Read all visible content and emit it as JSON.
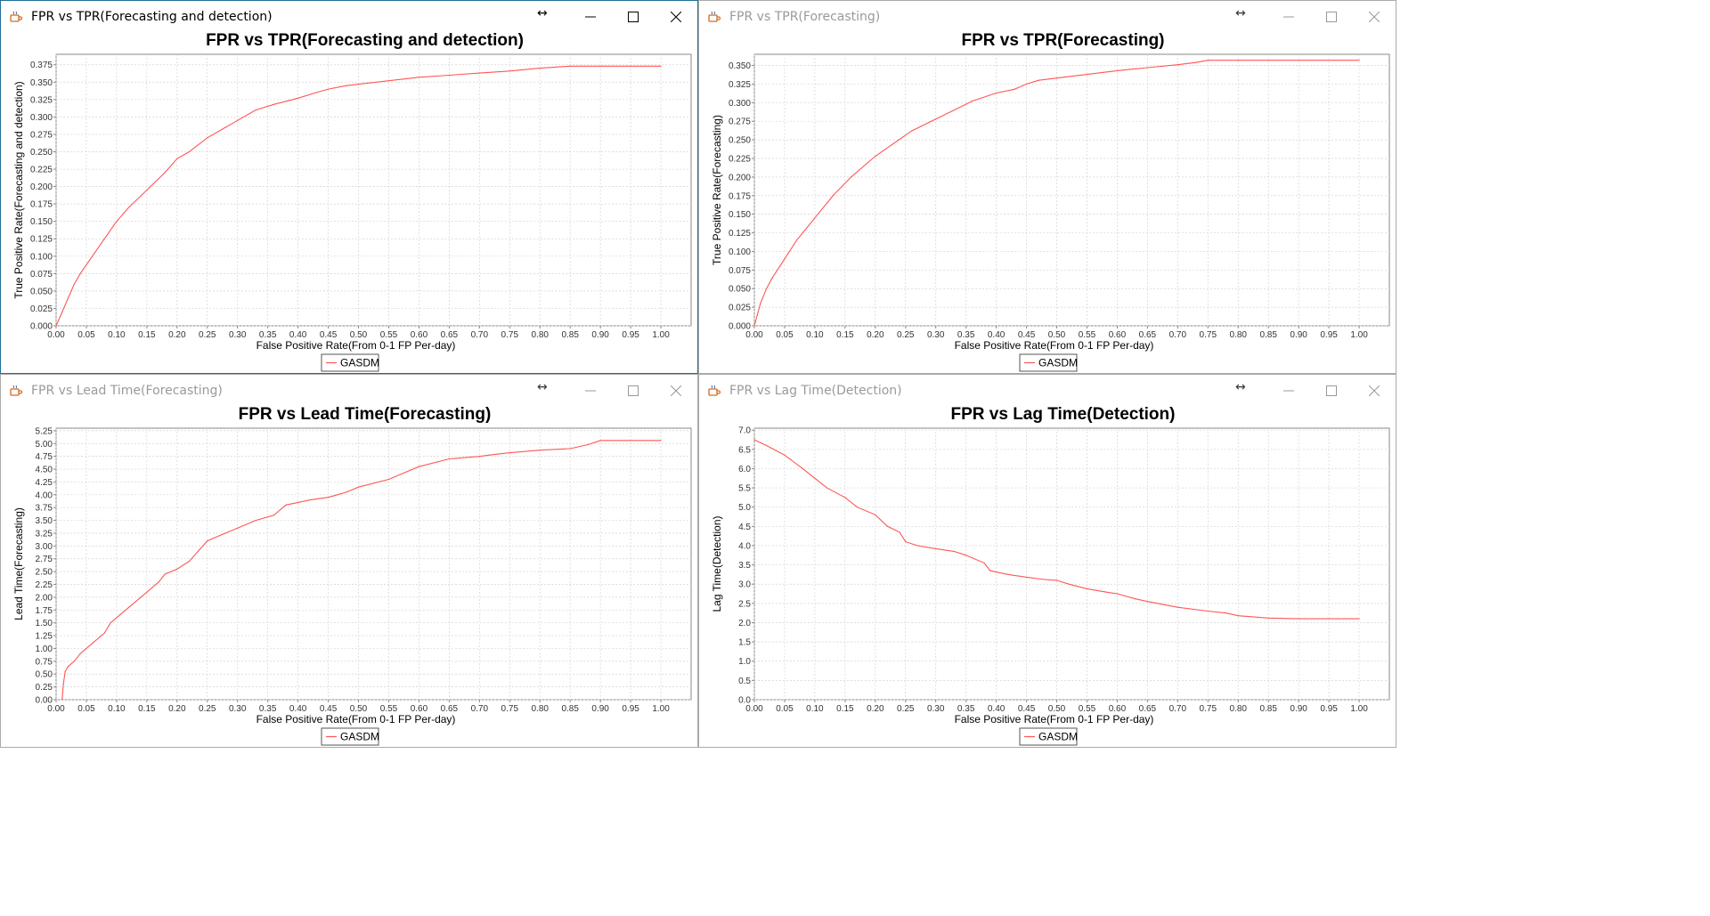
{
  "colors": {
    "series": "#ff5555",
    "grid": "#d4d4d4",
    "axis": "#888888",
    "active_border": "#1f6e97"
  },
  "icons": {
    "app": "java-cup-icon",
    "resize": "horizontal-resize-icon",
    "minimize": "minimize-icon",
    "maximize": "maximize-icon",
    "close": "close-icon"
  },
  "windows": [
    {
      "title": "FPR vs TPR(Forecasting and detection)",
      "active": true
    },
    {
      "title": "FPR vs TPR(Forecasting)",
      "active": false
    },
    {
      "title": "FPR vs Lead Time(Forecasting)",
      "active": false
    },
    {
      "title": "FPR vs Lag Time(Detection)",
      "active": false
    }
  ],
  "chart_data": [
    {
      "type": "line",
      "title": "FPR vs TPR(Forecasting and detection)",
      "xlabel": "False Positive Rate(From 0-1 FP Per-day)",
      "ylabel": "True Positive Rate(Forecasting and detection)",
      "xlim": [
        0,
        1.05
      ],
      "ylim": [
        0,
        0.39
      ],
      "xticks": [
        "0.00",
        "0.05",
        "0.10",
        "0.15",
        "0.20",
        "0.25",
        "0.30",
        "0.35",
        "0.40",
        "0.45",
        "0.50",
        "0.55",
        "0.60",
        "0.65",
        "0.70",
        "0.75",
        "0.80",
        "0.85",
        "0.90",
        "0.95",
        "1.00"
      ],
      "yticks": [
        "0.000",
        "0.025",
        "0.050",
        "0.075",
        "0.100",
        "0.125",
        "0.150",
        "0.175",
        "0.200",
        "0.225",
        "0.250",
        "0.275",
        "0.300",
        "0.325",
        "0.350",
        "0.375"
      ],
      "grid": true,
      "legend_position": "bottom-center",
      "series": [
        {
          "name": "GASDM",
          "x": [
            0,
            0.01,
            0.02,
            0.03,
            0.04,
            0.06,
            0.08,
            0.1,
            0.12,
            0.15,
            0.18,
            0.2,
            0.22,
            0.25,
            0.28,
            0.3,
            0.33,
            0.36,
            0.4,
            0.43,
            0.45,
            0.48,
            0.5,
            0.55,
            0.6,
            0.65,
            0.7,
            0.75,
            0.8,
            0.85,
            0.9,
            0.95,
            1.0
          ],
          "y": [
            0,
            0.02,
            0.04,
            0.06,
            0.075,
            0.1,
            0.125,
            0.15,
            0.17,
            0.195,
            0.22,
            0.24,
            0.25,
            0.27,
            0.285,
            0.295,
            0.31,
            0.318,
            0.327,
            0.335,
            0.34,
            0.345,
            0.347,
            0.352,
            0.357,
            0.36,
            0.363,
            0.366,
            0.37,
            0.373,
            0.373,
            0.373,
            0.373
          ]
        }
      ]
    },
    {
      "type": "line",
      "title": "FPR vs TPR(Forecasting)",
      "xlabel": "False Positive Rate(From 0-1 FP Per-day)",
      "ylabel": "True Positive Rate(Forecasting)",
      "xlim": [
        0,
        1.05
      ],
      "ylim": [
        0,
        0.365
      ],
      "xticks": [
        "0.00",
        "0.05",
        "0.10",
        "0.15",
        "0.20",
        "0.25",
        "0.30",
        "0.35",
        "0.40",
        "0.45",
        "0.50",
        "0.55",
        "0.60",
        "0.65",
        "0.70",
        "0.75",
        "0.80",
        "0.85",
        "0.90",
        "0.95",
        "1.00"
      ],
      "yticks": [
        "0.000",
        "0.025",
        "0.050",
        "0.075",
        "0.100",
        "0.125",
        "0.150",
        "0.175",
        "0.200",
        "0.225",
        "0.250",
        "0.275",
        "0.300",
        "0.325",
        "0.350"
      ],
      "grid": true,
      "legend_position": "bottom-center",
      "series": [
        {
          "name": "GASDM",
          "x": [
            0,
            0.01,
            0.02,
            0.03,
            0.05,
            0.07,
            0.1,
            0.13,
            0.16,
            0.2,
            0.23,
            0.26,
            0.3,
            0.33,
            0.36,
            0.4,
            0.43,
            0.45,
            0.47,
            0.5,
            0.55,
            0.6,
            0.65,
            0.7,
            0.73,
            0.75,
            0.8,
            0.9,
            1.0
          ],
          "y": [
            0,
            0.03,
            0.05,
            0.065,
            0.09,
            0.115,
            0.145,
            0.175,
            0.2,
            0.228,
            0.245,
            0.262,
            0.278,
            0.29,
            0.302,
            0.313,
            0.318,
            0.325,
            0.33,
            0.333,
            0.338,
            0.343,
            0.347,
            0.351,
            0.354,
            0.357,
            0.357,
            0.357,
            0.357
          ]
        }
      ]
    },
    {
      "type": "line",
      "title": "FPR vs Lead Time(Forecasting)",
      "xlabel": "False Positive Rate(From 0-1 FP Per-day)",
      "ylabel": "Lead Time(Forecasting)",
      "xlim": [
        0,
        1.05
      ],
      "ylim": [
        0,
        5.3
      ],
      "xticks": [
        "0.00",
        "0.05",
        "0.10",
        "0.15",
        "0.20",
        "0.25",
        "0.30",
        "0.35",
        "0.40",
        "0.45",
        "0.50",
        "0.55",
        "0.60",
        "0.65",
        "0.70",
        "0.75",
        "0.80",
        "0.85",
        "0.90",
        "0.95",
        "1.00"
      ],
      "yticks": [
        "0.00",
        "0.25",
        "0.50",
        "0.75",
        "1.00",
        "1.25",
        "1.50",
        "1.75",
        "2.00",
        "2.25",
        "2.50",
        "2.75",
        "3.00",
        "3.25",
        "3.50",
        "3.75",
        "4.00",
        "4.25",
        "4.50",
        "4.75",
        "5.00",
        "5.25"
      ],
      "grid": true,
      "legend_position": "bottom-center",
      "series": [
        {
          "name": "GASDM",
          "x": [
            0.01,
            0.012,
            0.015,
            0.02,
            0.03,
            0.04,
            0.06,
            0.08,
            0.09,
            0.1,
            0.12,
            0.15,
            0.17,
            0.18,
            0.2,
            0.22,
            0.25,
            0.27,
            0.3,
            0.33,
            0.36,
            0.38,
            0.4,
            0.42,
            0.45,
            0.48,
            0.5,
            0.55,
            0.58,
            0.6,
            0.65,
            0.7,
            0.72,
            0.75,
            0.8,
            0.85,
            0.88,
            0.9,
            0.95,
            1.0
          ],
          "y": [
            0,
            0.3,
            0.55,
            0.65,
            0.75,
            0.9,
            1.1,
            1.3,
            1.5,
            1.6,
            1.8,
            2.1,
            2.3,
            2.45,
            2.55,
            2.7,
            3.1,
            3.2,
            3.35,
            3.5,
            3.6,
            3.8,
            3.85,
            3.9,
            3.95,
            4.05,
            4.15,
            4.3,
            4.45,
            4.55,
            4.7,
            4.75,
            4.78,
            4.82,
            4.87,
            4.9,
            4.98,
            5.06,
            5.06,
            5.06
          ]
        }
      ]
    },
    {
      "type": "line",
      "title": "FPR vs Lag Time(Detection)",
      "xlabel": "False Positive Rate(From 0-1 FP Per-day)",
      "ylabel": "Lag Time(Detection)",
      "xlim": [
        0,
        1.05
      ],
      "ylim": [
        0,
        7.05
      ],
      "xticks": [
        "0.00",
        "0.05",
        "0.10",
        "0.15",
        "0.20",
        "0.25",
        "0.30",
        "0.35",
        "0.40",
        "0.45",
        "0.50",
        "0.55",
        "0.60",
        "0.65",
        "0.70",
        "0.75",
        "0.80",
        "0.85",
        "0.90",
        "0.95",
        "1.00"
      ],
      "yticks": [
        "0.0",
        "0.5",
        "1.0",
        "1.5",
        "2.0",
        "2.5",
        "3.0",
        "3.5",
        "4.0",
        "4.5",
        "5.0",
        "5.5",
        "6.0",
        "6.5",
        "7.0"
      ],
      "grid": true,
      "legend_position": "bottom-center",
      "series": [
        {
          "name": "GASDM",
          "x": [
            0,
            0.02,
            0.05,
            0.08,
            0.1,
            0.12,
            0.15,
            0.17,
            0.2,
            0.22,
            0.24,
            0.25,
            0.27,
            0.3,
            0.33,
            0.35,
            0.38,
            0.39,
            0.42,
            0.45,
            0.48,
            0.5,
            0.52,
            0.55,
            0.58,
            0.6,
            0.63,
            0.65,
            0.7,
            0.75,
            0.78,
            0.8,
            0.85,
            0.9,
            0.95,
            1.0
          ],
          "y": [
            6.75,
            6.6,
            6.35,
            6.0,
            5.75,
            5.5,
            5.25,
            5.0,
            4.8,
            4.5,
            4.35,
            4.1,
            4.0,
            3.92,
            3.85,
            3.75,
            3.55,
            3.35,
            3.25,
            3.18,
            3.12,
            3.1,
            3.0,
            2.88,
            2.8,
            2.75,
            2.62,
            2.55,
            2.4,
            2.3,
            2.25,
            2.18,
            2.12,
            2.1,
            2.1,
            2.1
          ]
        }
      ]
    }
  ]
}
